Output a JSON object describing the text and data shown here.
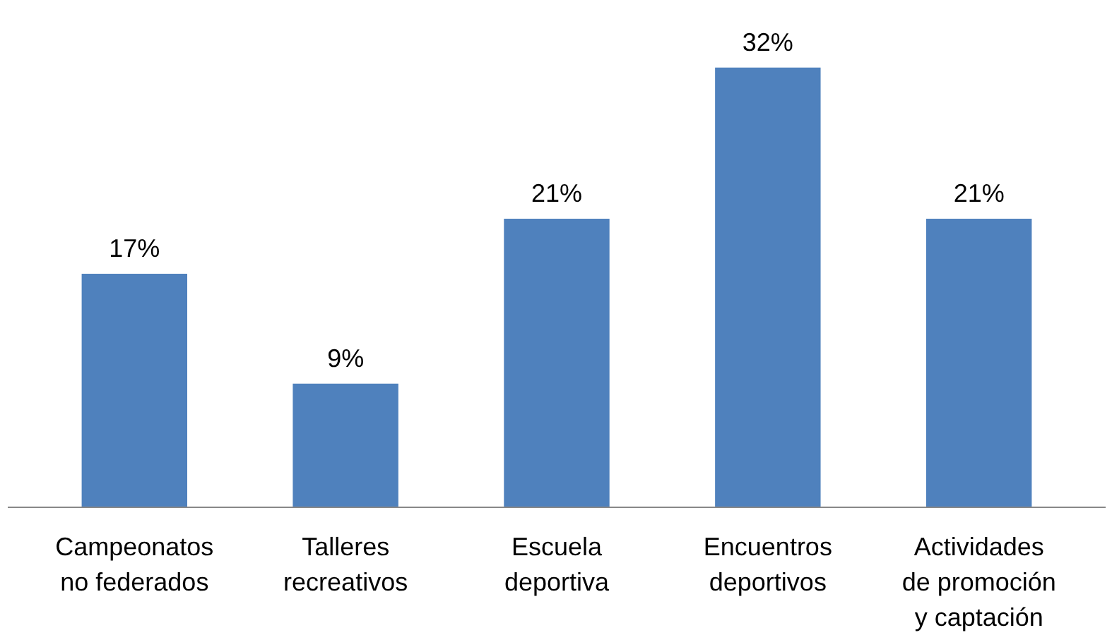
{
  "chart_data": {
    "type": "bar",
    "categories": [
      "Campeonatos no federados",
      "Talleres recreativos",
      "Escuela deportiva",
      "Encuentros deportivos",
      "Actividades de promoción y captación"
    ],
    "values": [
      17,
      9,
      21,
      32,
      21
    ],
    "value_labels": [
      "17%",
      "9%",
      "21%",
      "32%",
      "21%"
    ],
    "color": "#4f81bd",
    "grid": false,
    "tick_labels": "x"
  }
}
